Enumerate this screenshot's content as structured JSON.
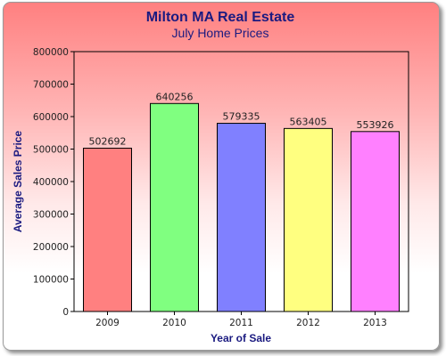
{
  "chart_data": {
    "type": "bar",
    "title": "Milton MA Real Estate",
    "subtitle": "July Home Prices",
    "xlabel": "Year of Sale",
    "ylabel": "Average Sales Price",
    "categories": [
      "2009",
      "2010",
      "2011",
      "2012",
      "2013"
    ],
    "values": [
      502692,
      640256,
      579335,
      563405,
      553926
    ],
    "data_labels": [
      "502692",
      "640256",
      "579335",
      "563405",
      "553926"
    ],
    "colors": [
      "#ff8080",
      "#80ff80",
      "#8080ff",
      "#ffff80",
      "#ff80ff"
    ],
    "ylim": [
      0,
      800000
    ],
    "yticks": [
      "0",
      "100000",
      "200000",
      "300000",
      "400000",
      "500000",
      "600000",
      "700000",
      "800000"
    ],
    "grid": false,
    "legend": "none"
  }
}
